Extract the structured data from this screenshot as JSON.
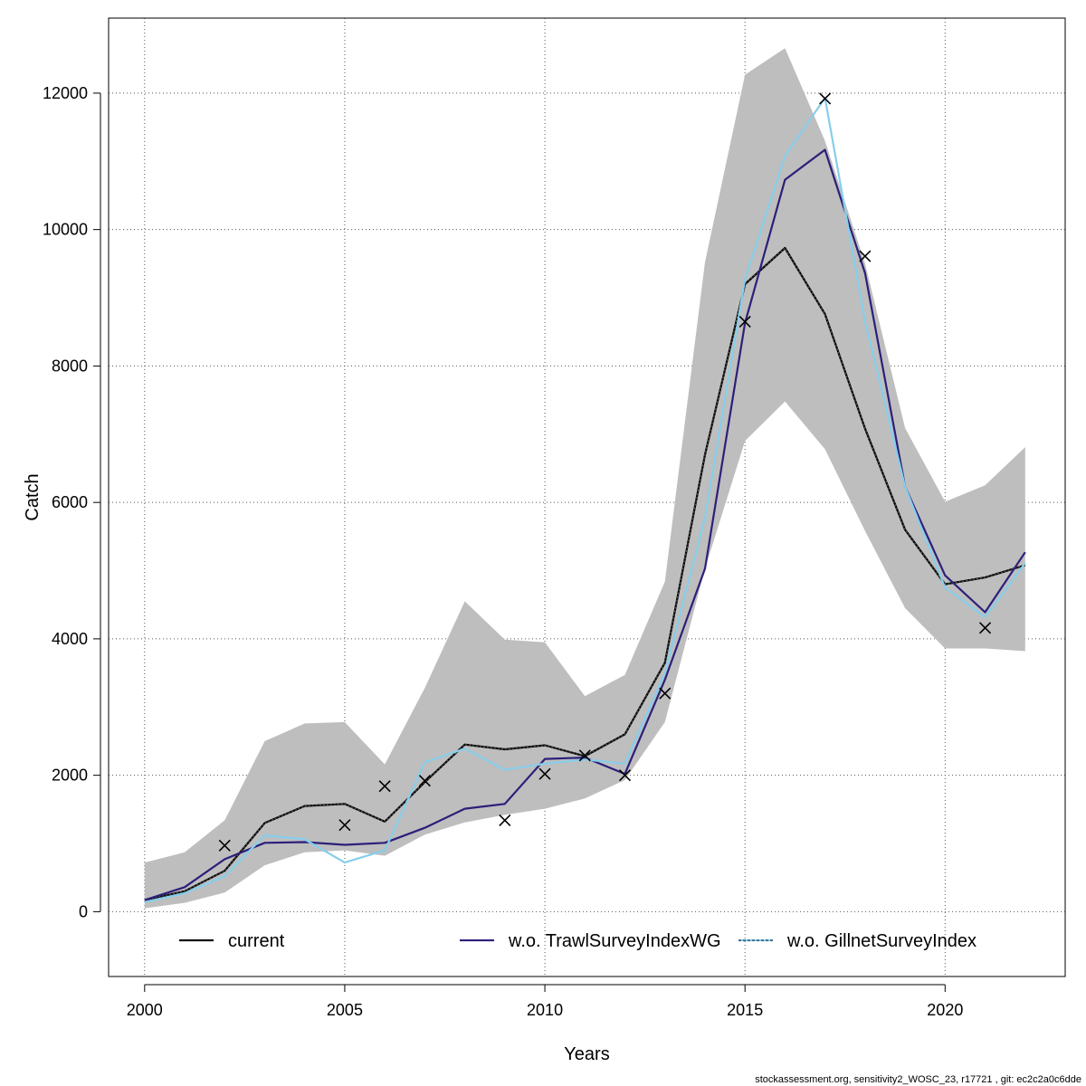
{
  "chart_data": {
    "type": "line",
    "title": "",
    "xlabel": "Years",
    "ylabel": "Catch",
    "xlim": [
      1999.1,
      2023
    ],
    "ylim": [
      -950,
      13100
    ],
    "grid": true,
    "legend_position": "bottom",
    "x_ticks": [
      2000,
      2005,
      2010,
      2015,
      2020
    ],
    "y_ticks": [
      0,
      2000,
      4000,
      6000,
      8000,
      10000,
      12000
    ],
    "x_tick_labels": [
      "2000",
      "2005",
      "2010",
      "2015",
      "2020"
    ],
    "y_tick_labels": [
      "0",
      "2000",
      "4000",
      "6000",
      "8000",
      "10000",
      "12000"
    ],
    "colors": {
      "band": "#bebebe",
      "current": "#000000",
      "current_dots": "#555555",
      "trawl": "#2c1f7a",
      "gillnet": "#87ceeb"
    },
    "confidence_band": {
      "x": [
        2000,
        2001,
        2002,
        2003,
        2004,
        2005,
        2006,
        2007,
        2008,
        2009,
        2010,
        2011,
        2012,
        2013,
        2014,
        2015,
        2016,
        2017,
        2018,
        2019,
        2020,
        2021,
        2022
      ],
      "lower": [
        50,
        130,
        280,
        680,
        870,
        900,
        820,
        1130,
        1310,
        1420,
        1510,
        1660,
        1930,
        2780,
        5030,
        6900,
        7480,
        6780,
        5580,
        4450,
        3860,
        3860,
        3820
      ],
      "upper": [
        720,
        870,
        1340,
        2500,
        2760,
        2780,
        2160,
        3280,
        4550,
        3990,
        3950,
        3160,
        3470,
        4840,
        9520,
        12270,
        12660,
        11300,
        9500,
        7090,
        6010,
        6250,
        6810
      ]
    },
    "series": [
      {
        "name": "current",
        "x": [
          2000,
          2001,
          2002,
          2003,
          2004,
          2005,
          2006,
          2007,
          2008,
          2009,
          2010,
          2011,
          2012,
          2013,
          2014,
          2015,
          2016,
          2017,
          2018,
          2019,
          2020,
          2021,
          2022
        ],
        "values": [
          170,
          300,
          600,
          1300,
          1550,
          1580,
          1320,
          1900,
          2450,
          2380,
          2440,
          2280,
          2600,
          3650,
          6700,
          9200,
          9730,
          8760,
          7080,
          5600,
          4800,
          4900,
          5080
        ]
      },
      {
        "name": "w.o. TrawlSurveyIndexWG",
        "x": [
          2000,
          2001,
          2002,
          2003,
          2004,
          2005,
          2006,
          2007,
          2008,
          2009,
          2010,
          2011,
          2012,
          2013,
          2014,
          2015,
          2016,
          2017,
          2018,
          2019,
          2020,
          2021,
          2022
        ],
        "values": [
          170,
          360,
          770,
          1010,
          1020,
          980,
          1010,
          1230,
          1510,
          1580,
          2240,
          2260,
          2020,
          3400,
          5030,
          8630,
          10730,
          11170,
          9360,
          6230,
          4930,
          4390,
          5270
        ]
      },
      {
        "name": "w.o. GillnetSurveyIndex",
        "x": [
          2000,
          2001,
          2002,
          2003,
          2004,
          2005,
          2006,
          2007,
          2008,
          2009,
          2010,
          2011,
          2012,
          2013,
          2014,
          2015,
          2016,
          2017,
          2018,
          2019,
          2020,
          2021,
          2022
        ],
        "values": [
          140,
          270,
          520,
          1120,
          1060,
          720,
          900,
          2190,
          2390,
          2080,
          2170,
          2230,
          2170,
          3500,
          5780,
          9270,
          11080,
          11930,
          8650,
          6230,
          4750,
          4320,
          5110
        ]
      }
    ],
    "observed_points": {
      "x": [
        2002,
        2005,
        2006,
        2007,
        2009,
        2010,
        2011,
        2012,
        2013,
        2015,
        2017,
        2018,
        2021
      ],
      "values": [
        970,
        1270,
        1840,
        1920,
        1340,
        2020,
        2290,
        2000,
        3200,
        8650,
        11920,
        9610,
        4160
      ]
    },
    "footer_text": "stockassessment.org, sensitivity2_WOSC_23, r17721 , git: ec2c2a0c6dde"
  }
}
